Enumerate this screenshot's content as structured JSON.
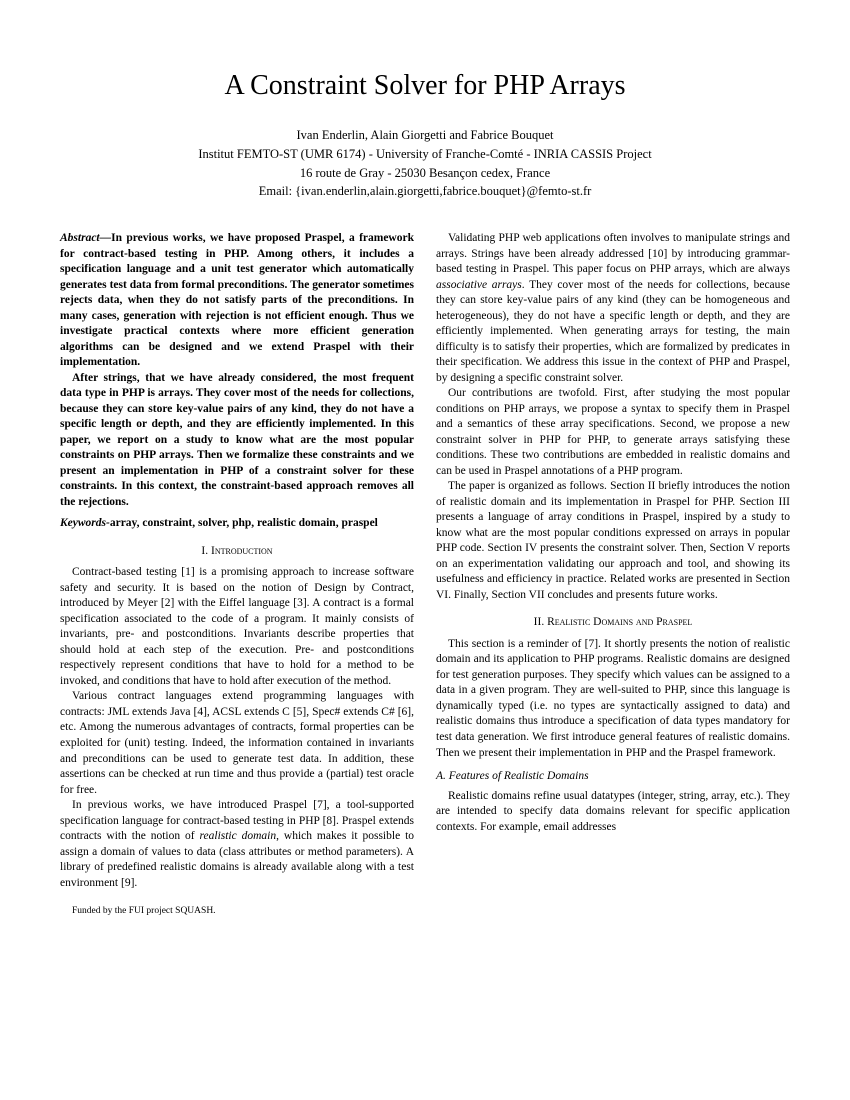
{
  "title": "A Constraint Solver for PHP Arrays",
  "authors_line": "Ivan Enderlin, Alain Giorgetti and Fabrice Bouquet",
  "affil_line": "Institut FEMTO-ST (UMR 6174) - University of Franche-Comté - INRIA CASSIS Project",
  "address_line": "16 route de Gray - 25030 Besançon cedex, France",
  "email_line": "Email: {ivan.enderlin,alain.giorgetti,fabrice.bouquet}@femto-st.fr",
  "abstract_label": "Abstract—",
  "abstract_p1": "In previous works, we have proposed Praspel, a framework for contract-based testing in PHP. Among others, it includes a specification language and a unit test generator which automatically generates test data from formal preconditions. The generator sometimes rejects data, when they do not satisfy parts of the preconditions. In many cases, generation with rejection is not efficient enough. Thus we investigate practical contexts where more efficient generation algorithms can be designed and we extend Praspel with their implementation.",
  "abstract_p2": "After strings, that we have already considered, the most frequent data type in PHP is arrays. They cover most of the needs for collections, because they can store key-value pairs of any kind, they do not have a specific length or depth, and they are efficiently implemented. In this paper, we report on a study to know what are the most popular constraints on PHP arrays. Then we formalize these constraints and we present an implementation in PHP of a constraint solver for these constraints. In this context, the constraint-based approach removes all the rejections.",
  "keywords_label": "Keywords-",
  "keywords_text": "array, constraint, solver, php, realistic domain, praspel",
  "section1_heading": "I. Introduction",
  "intro_p1": "Contract-based testing [1] is a promising approach to increase software safety and security. It is based on the notion of Design by Contract, introduced by Meyer [2] with the Eiffel language [3]. A contract is a formal specification associated to the code of a program. It mainly consists of invariants, pre- and postconditions. Invariants describe properties that should hold at each step of the execution. Pre- and postconditions respectively represent conditions that have to hold for a method to be invoked, and conditions that have to hold after execution of the method.",
  "intro_p2": "Various contract languages extend programming languages with contracts: JML extends Java [4], ACSL extends C [5], Spec# extends C# [6], etc. Among the numerous advantages of contracts, formal properties can be exploited for (unit) testing. Indeed, the information contained in invariants and preconditions can be used to generate test data. In addition, these assertions can be checked at run time and thus provide a (partial) test oracle for free.",
  "intro_p3a": "In previous works, we have introduced Praspel [7], a tool-supported specification language for contract-based testing in PHP [8]. Praspel extends contracts with the notion of ",
  "intro_p3_italic": "realistic domain",
  "intro_p3b": ", which makes it possible to assign a domain of values to data (class attributes or method parameters). A library of predefined realistic domains is already available along with a test environment [9].",
  "footnote": "Funded by the FUI project SQUASH.",
  "col2_p1a": "Validating PHP web applications often involves to manipulate strings and arrays. Strings have been already addressed [10] by introducing grammar-based testing in Praspel. This paper focus on PHP arrays, which are always ",
  "col2_p1_italic": "associative arrays",
  "col2_p1b": ". They cover most of the needs for collections, because they can store key-value pairs of any kind (they can be homogeneous and heterogeneous), they do not have a specific length or depth, and they are efficiently implemented. When generating arrays for testing, the main difficulty is to satisfy their properties, which are formalized by predicates in their specification. We address this issue in the context of PHP and Praspel, by designing a specific constraint solver.",
  "col2_p2": "Our contributions are twofold. First, after studying the most popular conditions on PHP arrays, we propose a syntax to specify them in Praspel and a semantics of these array specifications. Second, we propose a new constraint solver in PHP for PHP, to generate arrays satisfying these conditions. These two contributions are embedded in realistic domains and can be used in Praspel annotations of a PHP program.",
  "col2_p3": "The paper is organized as follows. Section II briefly introduces the notion of realistic domain and its implementation in Praspel for PHP. Section III presents a language of array conditions in Praspel, inspired by a study to know what are the most popular conditions expressed on arrays in popular PHP code. Section IV presents the constraint solver. Then, Section V reports on an experimentation validating our approach and tool, and showing its usefulness and efficiency in practice. Related works are presented in Section VI. Finally, Section VII concludes and presents future works.",
  "section2_heading": "II. Realistic Domains and Praspel",
  "sec2_p1": "This section is a reminder of [7]. It shortly presents the notion of realistic domain and its application to PHP programs. Realistic domains are designed for test generation purposes. They specify which values can be assigned to a data in a given program. They are well-suited to PHP, since this language is dynamically typed (i.e. no types are syntactically assigned to data) and realistic domains thus introduce a specification of data types mandatory for test data generation. We first introduce general features of realistic domains. Then we present their implementation in PHP and the Praspel framework.",
  "subsection_a_heading": "A. Features of Realistic Domains",
  "subsec_a_p1": "Realistic domains refine usual datatypes (integer, string, array, etc.). They are intended to specify data domains relevant for specific application contexts. For example, email addresses"
}
